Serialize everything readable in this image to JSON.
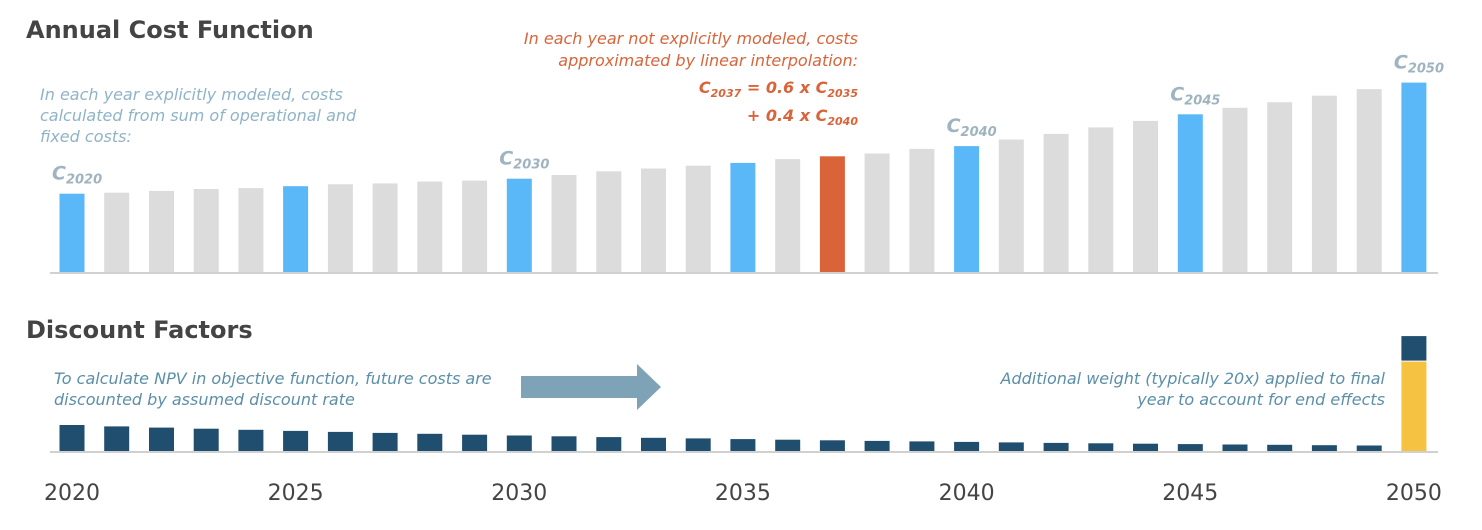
{
  "chart_data": [
    {
      "type": "bar",
      "title": "Annual Cost Function",
      "x": [
        2020,
        2021,
        2022,
        2023,
        2024,
        2025,
        2026,
        2027,
        2028,
        2029,
        2030,
        2031,
        2032,
        2033,
        2034,
        2035,
        2036,
        2037,
        2038,
        2039,
        2040,
        2041,
        2042,
        2043,
        2044,
        2045,
        2046,
        2047,
        2048,
        2049,
        2050
      ],
      "values": [
        85,
        86,
        88,
        90,
        91,
        93,
        95,
        96,
        98,
        99,
        101,
        105,
        109,
        112,
        115,
        118,
        122,
        125,
        128,
        133,
        136,
        143,
        149,
        156,
        163,
        170,
        177,
        183,
        190,
        197,
        204
      ],
      "bar_types": [
        "modeled",
        "interp",
        "interp",
        "interp",
        "interp",
        "modeled",
        "interp",
        "interp",
        "interp",
        "interp",
        "modeled",
        "interp",
        "interp",
        "interp",
        "interp",
        "modeled",
        "interp",
        "highlight",
        "interp",
        "interp",
        "modeled",
        "interp",
        "interp",
        "interp",
        "interp",
        "modeled",
        "interp",
        "interp",
        "interp",
        "interp",
        "modeled"
      ],
      "colors": {
        "modeled": "#5ab8f8",
        "interp": "#dcdcdc",
        "highlight": "#d9643a"
      },
      "labels": [
        {
          "year": 2020,
          "base": "C",
          "sub": "2020"
        },
        {
          "year": 2030,
          "base": "C",
          "sub": "2030"
        },
        {
          "year": 2040,
          "base": "C",
          "sub": "2040"
        },
        {
          "year": 2045,
          "base": "C",
          "sub": "2045"
        },
        {
          "year": 2050,
          "base": "C",
          "sub": "2050"
        }
      ],
      "annotations": {
        "modeled_note": [
          "In each year explicitly modeled, costs",
          "calculated from sum of operational and",
          "fixed costs:"
        ],
        "interp_note": [
          "In each year not explicitly modeled, costs",
          "approximated by linear interpolation:"
        ],
        "equation": {
          "line1": {
            "c": "C",
            "sub": "2037",
            "op": " = 0.6 x ",
            "c2": "C",
            "sub2": "2035"
          },
          "line2": {
            "op": "+ 0.4 x ",
            "c": "C",
            "sub": "2040"
          }
        }
      }
    },
    {
      "type": "bar",
      "title": "Discount Factors",
      "x": [
        2020,
        2021,
        2022,
        2023,
        2024,
        2025,
        2026,
        2027,
        2028,
        2029,
        2030,
        2031,
        2032,
        2033,
        2034,
        2035,
        2036,
        2037,
        2038,
        2039,
        2040,
        2041,
        2042,
        2043,
        2044,
        2045,
        2046,
        2047,
        2048,
        2049,
        2050
      ],
      "values": [
        1.0,
        0.95,
        0.905,
        0.862,
        0.821,
        0.78,
        0.743,
        0.708,
        0.674,
        0.642,
        0.61,
        0.58,
        0.553,
        0.527,
        0.502,
        0.477,
        0.454,
        0.433,
        0.412,
        0.392,
        0.373,
        0.355,
        0.338,
        0.322,
        0.307,
        0.292,
        0.278,
        0.265,
        0.252,
        0.24,
        0.907
      ],
      "final_year_extra_weight": 3.386,
      "colors": {
        "discount": "#1f4e6e",
        "extra_weight": "#f5c242"
      },
      "xticks": [
        "2020",
        "2025",
        "2030",
        "2035",
        "2040",
        "2045",
        "2050"
      ],
      "annotations": {
        "npv_note": [
          "To calculate NPV in objective function, future costs are",
          "discounted by assumed discount rate"
        ],
        "end_note": [
          "Additional weight (typically 20x) applied to final",
          "year to account for end effects"
        ],
        "arrow_color": "#7ea3b6"
      }
    }
  ]
}
